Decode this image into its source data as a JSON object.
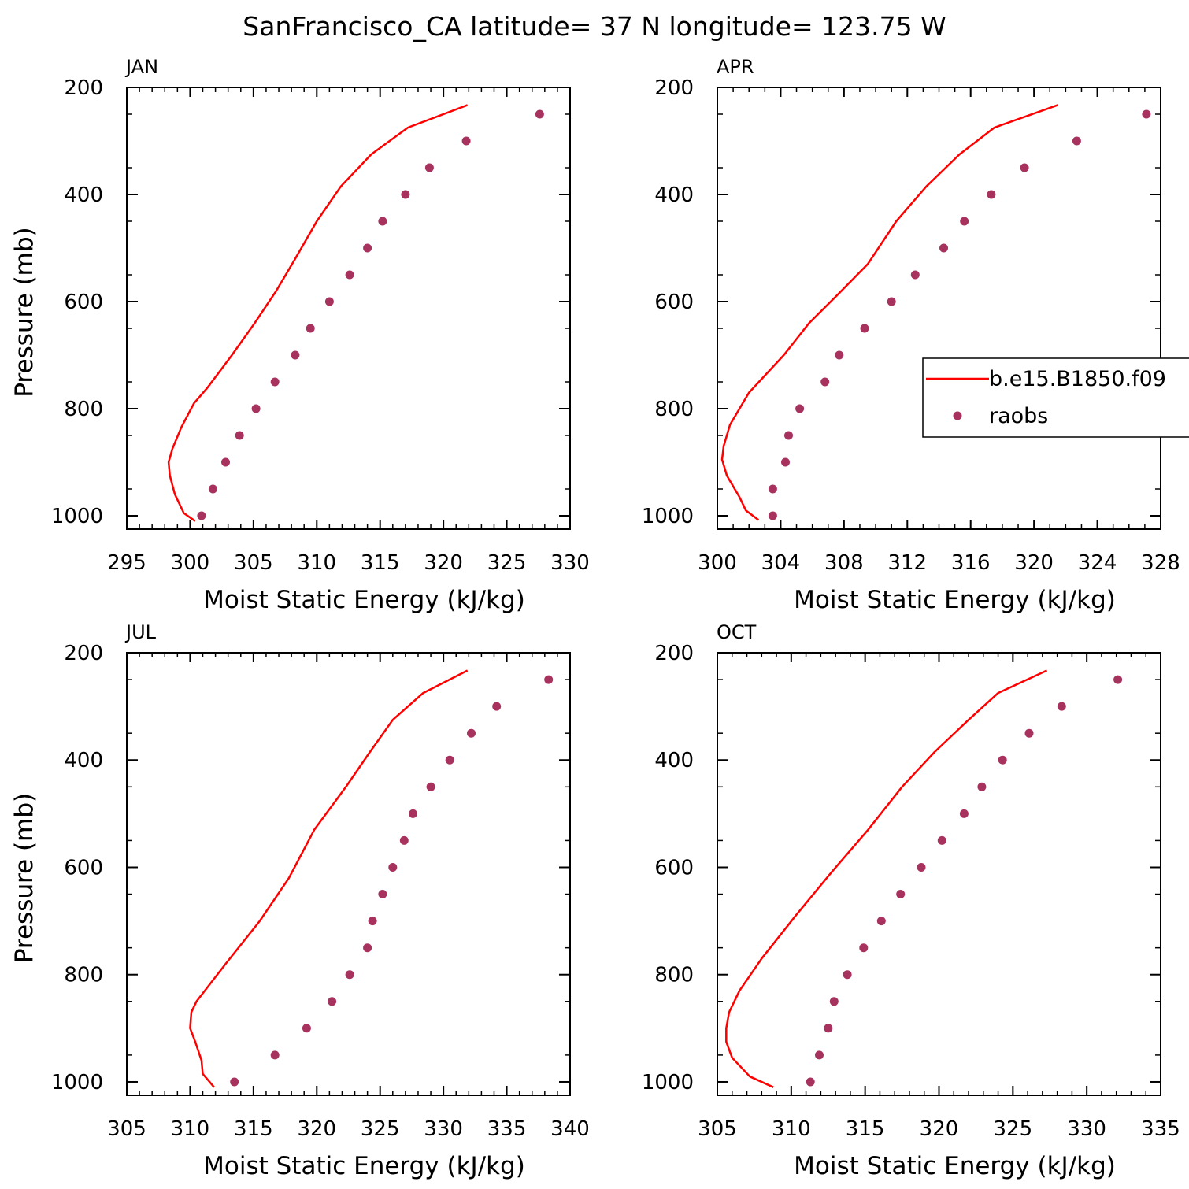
{
  "figure": {
    "title": "SanFrancisco_CA  latitude= 37 N longitude= 123.75 W",
    "colors": {
      "model_line": "#ff0000",
      "obs_dots": "#a8325e",
      "axes": "#000000",
      "background": "#ffffff"
    },
    "legend": {
      "placement": "right, inside APR panel (clipped)",
      "entries": [
        {
          "label": "b.e15.B1850.f09",
          "type": "line"
        },
        {
          "label": "raobs",
          "type": "marker"
        }
      ]
    }
  },
  "chart_data": [
    {
      "type": "line+scatter",
      "title": "JAN",
      "xlabel": "Moist Static Energy (kJ/kg)",
      "ylabel": "Pressure (mb)",
      "xlim": [
        295,
        330
      ],
      "ylim": [
        200,
        1025
      ],
      "xticks": [
        "295",
        "300",
        "305",
        "310",
        "315",
        "320",
        "325",
        "330"
      ],
      "yticks": [
        "200",
        "400",
        "600",
        "800",
        "1000"
      ],
      "series": [
        {
          "name": "b.e15.B1850.f09",
          "kind": "line",
          "x": [
            321.9,
            317.2,
            314.3,
            311.9,
            310.0,
            308.3,
            306.8,
            305.1,
            303.3,
            301.4,
            300.3,
            299.3,
            298.6,
            298.3,
            298.4,
            298.8,
            299.5,
            300.4
          ],
          "y": [
            233,
            275,
            325,
            385,
            450,
            520,
            580,
            640,
            700,
            760,
            790,
            835,
            875,
            900,
            925,
            960,
            995,
            1010
          ]
        },
        {
          "name": "raobs",
          "kind": "scatter",
          "x": [
            327.6,
            321.8,
            318.9,
            317.0,
            315.2,
            314.0,
            312.6,
            311.0,
            309.5,
            308.3,
            306.7,
            305.2,
            303.9,
            302.8,
            301.8,
            300.9
          ],
          "y": [
            250,
            300,
            350,
            400,
            450,
            500,
            550,
            600,
            650,
            700,
            750,
            800,
            850,
            900,
            950,
            1000
          ]
        }
      ]
    },
    {
      "type": "line+scatter",
      "title": "APR",
      "xlabel": "Moist Static Energy (kJ/kg)",
      "ylabel": "Pressure (mb)",
      "xlim": [
        300,
        328
      ],
      "ylim": [
        200,
        1025
      ],
      "xticks": [
        "300",
        "304",
        "308",
        "312",
        "316",
        "320",
        "324",
        "328"
      ],
      "yticks": [
        "200",
        "400",
        "600",
        "800",
        "1000"
      ],
      "series": [
        {
          "name": "b.e15.B1850.f09",
          "kind": "line",
          "x": [
            321.5,
            317.5,
            315.3,
            313.2,
            311.3,
            309.5,
            307.5,
            305.8,
            304.2,
            302.0,
            300.8,
            300.4,
            300.3,
            300.6,
            301.4,
            301.8,
            302.6
          ],
          "y": [
            233,
            275,
            325,
            385,
            450,
            530,
            590,
            640,
            700,
            770,
            830,
            870,
            895,
            925,
            965,
            990,
            1008
          ]
        },
        {
          "name": "raobs",
          "kind": "scatter",
          "x": [
            327.1,
            322.7,
            319.4,
            317.3,
            315.6,
            314.3,
            312.5,
            311.0,
            309.3,
            307.7,
            306.8,
            305.2,
            304.5,
            304.3,
            303.5,
            303.5
          ],
          "y": [
            250,
            300,
            350,
            400,
            450,
            500,
            550,
            600,
            650,
            700,
            750,
            800,
            850,
            900,
            950,
            1000
          ]
        }
      ]
    },
    {
      "type": "line+scatter",
      "title": "JUL",
      "xlabel": "Moist Static Energy (kJ/kg)",
      "ylabel": "Pressure (mb)",
      "xlim": [
        305,
        340
      ],
      "ylim": [
        200,
        1025
      ],
      "xticks": [
        "305",
        "310",
        "315",
        "320",
        "325",
        "330",
        "335",
        "340"
      ],
      "yticks": [
        "200",
        "400",
        "600",
        "800",
        "1000"
      ],
      "series": [
        {
          "name": "b.e15.B1850.f09",
          "kind": "line",
          "x": [
            331.9,
            328.4,
            326.0,
            324.2,
            322.3,
            319.8,
            317.8,
            315.5,
            312.8,
            310.5,
            310.1,
            310.0,
            310.4,
            310.9,
            311.0,
            311.9
          ],
          "y": [
            233,
            275,
            325,
            385,
            450,
            530,
            620,
            700,
            780,
            850,
            870,
            900,
            925,
            960,
            985,
            1010
          ]
        },
        {
          "name": "raobs",
          "kind": "scatter",
          "x": [
            338.3,
            334.2,
            332.2,
            330.5,
            329.0,
            327.6,
            326.9,
            326.0,
            325.2,
            324.4,
            324.0,
            322.6,
            321.2,
            319.2,
            316.7,
            313.5
          ],
          "y": [
            250,
            300,
            350,
            400,
            450,
            500,
            550,
            600,
            650,
            700,
            750,
            800,
            850,
            900,
            950,
            1000
          ]
        }
      ]
    },
    {
      "type": "line+scatter",
      "title": "OCT",
      "xlabel": "Moist Static Energy (kJ/kg)",
      "ylabel": "Pressure (mb)",
      "xlim": [
        305,
        335
      ],
      "ylim": [
        200,
        1025
      ],
      "xticks": [
        "305",
        "310",
        "315",
        "320",
        "325",
        "330",
        "335"
      ],
      "yticks": [
        "200",
        "400",
        "600",
        "800",
        "1000"
      ],
      "series": [
        {
          "name": "b.e15.B1850.f09",
          "kind": "line",
          "x": [
            327.3,
            324.0,
            322.0,
            319.7,
            317.5,
            315.2,
            312.7,
            310.3,
            308.0,
            306.5,
            305.8,
            305.6,
            305.6,
            306.0,
            307.2,
            308.8
          ],
          "y": [
            233,
            275,
            325,
            385,
            450,
            530,
            610,
            690,
            770,
            830,
            870,
            900,
            925,
            955,
            990,
            1010
          ]
        },
        {
          "name": "raobs",
          "kind": "scatter",
          "x": [
            332.1,
            328.3,
            326.1,
            324.3,
            322.9,
            321.7,
            320.2,
            318.8,
            317.4,
            316.1,
            314.9,
            313.8,
            312.9,
            312.5,
            311.9,
            311.3
          ],
          "y": [
            250,
            300,
            350,
            400,
            450,
            500,
            550,
            600,
            650,
            700,
            750,
            800,
            850,
            900,
            950,
            1000
          ]
        }
      ]
    }
  ]
}
